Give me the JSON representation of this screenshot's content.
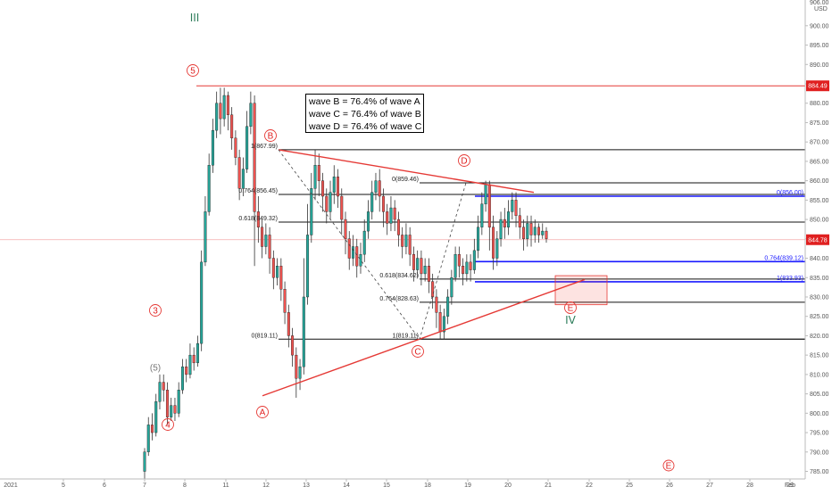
{
  "chart_data": {
    "type": "candlestick",
    "y_unit": "USD",
    "ylim": [
      783,
      903
    ],
    "y_ticks": [
      785,
      790,
      795,
      800,
      805,
      810,
      815,
      820,
      825,
      830,
      835,
      840,
      845,
      850,
      855,
      860,
      865,
      870,
      875,
      880,
      885,
      890,
      895,
      900
    ],
    "top_axis_labels": [
      "906.00",
      "USD"
    ],
    "x_tick_labels": [
      "2021",
      "5",
      "6",
      "7",
      "8",
      "11",
      "12",
      "13",
      "14",
      "15",
      "18",
      "19",
      "20",
      "21",
      "22",
      "25",
      "26",
      "27",
      "28",
      "29",
      "Feb"
    ],
    "price_badges": [
      {
        "label": "884.49",
        "value": 884.49,
        "color": "#e02020"
      },
      {
        "label": "844.78",
        "value": 844.78,
        "color": "#e02020"
      }
    ],
    "annotation_lines": [
      "wave B = 76.4% of wave A",
      "wave C = 76.4% of wave B",
      "wave D = 76.4% of wave C"
    ],
    "fib_levels_black": [
      {
        "label": "1(867.99)",
        "value": 867.99
      },
      {
        "label": "0.764(856.45)",
        "value": 856.45
      },
      {
        "label": "0.618(849.32)",
        "value": 849.32
      },
      {
        "label": "0(819.11)",
        "value": 819.11
      },
      {
        "label": "0(859.46)",
        "value": 859.46
      },
      {
        "label": "0.618(834.62)",
        "value": 834.62
      },
      {
        "label": "0.764(828.63)",
        "value": 828.63
      },
      {
        "label": "1(819.11)",
        "value": 819.11
      }
    ],
    "fib_levels_blue": [
      {
        "label": "0(856.00)",
        "value": 856.0
      },
      {
        "label": "0.764(839.12)",
        "value": 839.12
      },
      {
        "label": "1(833.93)",
        "value": 833.93
      }
    ],
    "wave_labels": [
      {
        "text": "III",
        "style": "green-roman"
      },
      {
        "text": "5",
        "style": "circled"
      },
      {
        "text": "B",
        "style": "circled"
      },
      {
        "text": "D",
        "style": "circled"
      },
      {
        "text": "3",
        "style": "circled"
      },
      {
        "text": "(5)",
        "style": "paren"
      },
      {
        "text": "4",
        "style": "circled"
      },
      {
        "text": "A",
        "style": "circled"
      },
      {
        "text": "C",
        "style": "circled"
      },
      {
        "text": "E",
        "style": "circled"
      },
      {
        "text": "IV",
        "style": "green-roman"
      },
      {
        "text": "E",
        "style": "circled-small"
      }
    ],
    "series": [
      {
        "candles": [
          [
            785,
            790,
            783,
            791
          ],
          [
            790,
            797,
            789,
            799
          ],
          [
            797,
            795,
            793,
            800
          ],
          [
            795,
            803,
            794,
            805
          ],
          [
            803,
            808,
            801,
            810
          ],
          [
            808,
            806,
            803,
            810
          ],
          [
            806,
            799,
            797,
            808
          ],
          [
            799,
            802,
            798,
            804
          ],
          [
            802,
            800,
            798,
            804
          ],
          [
            800,
            806,
            799,
            808
          ],
          [
            806,
            812,
            805,
            814
          ],
          [
            812,
            810,
            808,
            814
          ],
          [
            810,
            815,
            809,
            818
          ],
          [
            815,
            813,
            811,
            817
          ],
          [
            813,
            818,
            812,
            820
          ],
          [
            818,
            839,
            816,
            842
          ],
          [
            839,
            852,
            838,
            856
          ],
          [
            852,
            864,
            851,
            867
          ],
          [
            864,
            873,
            862,
            876
          ],
          [
            873,
            880,
            871,
            883
          ],
          [
            880,
            876,
            872,
            884
          ],
          [
            876,
            882,
            874,
            884
          ],
          [
            882,
            877,
            873,
            883
          ],
          [
            877,
            871,
            868,
            879
          ],
          [
            871,
            866,
            864,
            873
          ],
          [
            866,
            858,
            855,
            868
          ],
          [
            858,
            863,
            856,
            866
          ],
          [
            863,
            874,
            862,
            878
          ],
          [
            874,
            880,
            872,
            883
          ],
          [
            880,
            852,
            838,
            882
          ],
          [
            852,
            848,
            844,
            856
          ],
          [
            848,
            843,
            840,
            850
          ],
          [
            843,
            846,
            841,
            849
          ],
          [
            846,
            840,
            836,
            848
          ],
          [
            840,
            835,
            832,
            842
          ],
          [
            835,
            838,
            833,
            840
          ],
          [
            838,
            832,
            829,
            840
          ],
          [
            832,
            826,
            823,
            834
          ],
          [
            826,
            820,
            817,
            828
          ],
          [
            820,
            815,
            812,
            822
          ],
          [
            815,
            809,
            804,
            817
          ],
          [
            809,
            812,
            806,
            814
          ],
          [
            812,
            830,
            810,
            840
          ],
          [
            830,
            846,
            828,
            854
          ],
          [
            846,
            858,
            844,
            862
          ],
          [
            858,
            864,
            855,
            868
          ],
          [
            864,
            860,
            856,
            867
          ],
          [
            860,
            856,
            852,
            862
          ],
          [
            856,
            852,
            849,
            858
          ],
          [
            852,
            857,
            850,
            860
          ],
          [
            857,
            861,
            854,
            864
          ],
          [
            861,
            856,
            853,
            863
          ],
          [
            856,
            850,
            846,
            858
          ],
          [
            850,
            845,
            841,
            852
          ],
          [
            845,
            840,
            837,
            847
          ],
          [
            840,
            843,
            838,
            846
          ],
          [
            843,
            838,
            835,
            845
          ],
          [
            838,
            841,
            836,
            844
          ],
          [
            841,
            847,
            839,
            850
          ],
          [
            847,
            852,
            845,
            855
          ],
          [
            852,
            857,
            850,
            860
          ],
          [
            857,
            860,
            855,
            862
          ],
          [
            860,
            856,
            852,
            863
          ],
          [
            856,
            852,
            848,
            858
          ],
          [
            852,
            849,
            846,
            854
          ],
          [
            849,
            853,
            847,
            856
          ],
          [
            853,
            850,
            847,
            855
          ],
          [
            850,
            846,
            843,
            852
          ],
          [
            846,
            843,
            840,
            848
          ],
          [
            843,
            846,
            841,
            849
          ],
          [
            846,
            841,
            838,
            848
          ],
          [
            841,
            837,
            834,
            843
          ],
          [
            837,
            840,
            835,
            842
          ],
          [
            840,
            836,
            833,
            842
          ],
          [
            836,
            838,
            834,
            840
          ],
          [
            838,
            834,
            831,
            840
          ],
          [
            834,
            830,
            827,
            836
          ],
          [
            830,
            826,
            822,
            832
          ],
          [
            826,
            821,
            819,
            828
          ],
          [
            821,
            825,
            819,
            827
          ],
          [
            825,
            830,
            823,
            832
          ],
          [
            830,
            835,
            828,
            837
          ],
          [
            835,
            841,
            834,
            843
          ],
          [
            841,
            838,
            835,
            843
          ],
          [
            838,
            836,
            833,
            840
          ],
          [
            836,
            839,
            834,
            841
          ],
          [
            839,
            837,
            834,
            841
          ],
          [
            837,
            842,
            836,
            845
          ],
          [
            842,
            848,
            840,
            851
          ],
          [
            848,
            854,
            846,
            857
          ],
          [
            854,
            859,
            852,
            860
          ],
          [
            859,
            848,
            842,
            860
          ],
          [
            848,
            840,
            837,
            851
          ],
          [
            840,
            845,
            838,
            847
          ],
          [
            845,
            850,
            843,
            852
          ],
          [
            850,
            848,
            845,
            853
          ],
          [
            848,
            852,
            846,
            855
          ],
          [
            852,
            855,
            850,
            857
          ],
          [
            855,
            851,
            848,
            857
          ],
          [
            851,
            848,
            845,
            853
          ],
          [
            848,
            845,
            842,
            850
          ],
          [
            845,
            849,
            843,
            851
          ],
          [
            849,
            846,
            843,
            851
          ],
          [
            846,
            848,
            844,
            850
          ],
          [
            848,
            846,
            844,
            849
          ],
          [
            846,
            847,
            845,
            849
          ],
          [
            847,
            845,
            844,
            848
          ]
        ]
      }
    ]
  }
}
